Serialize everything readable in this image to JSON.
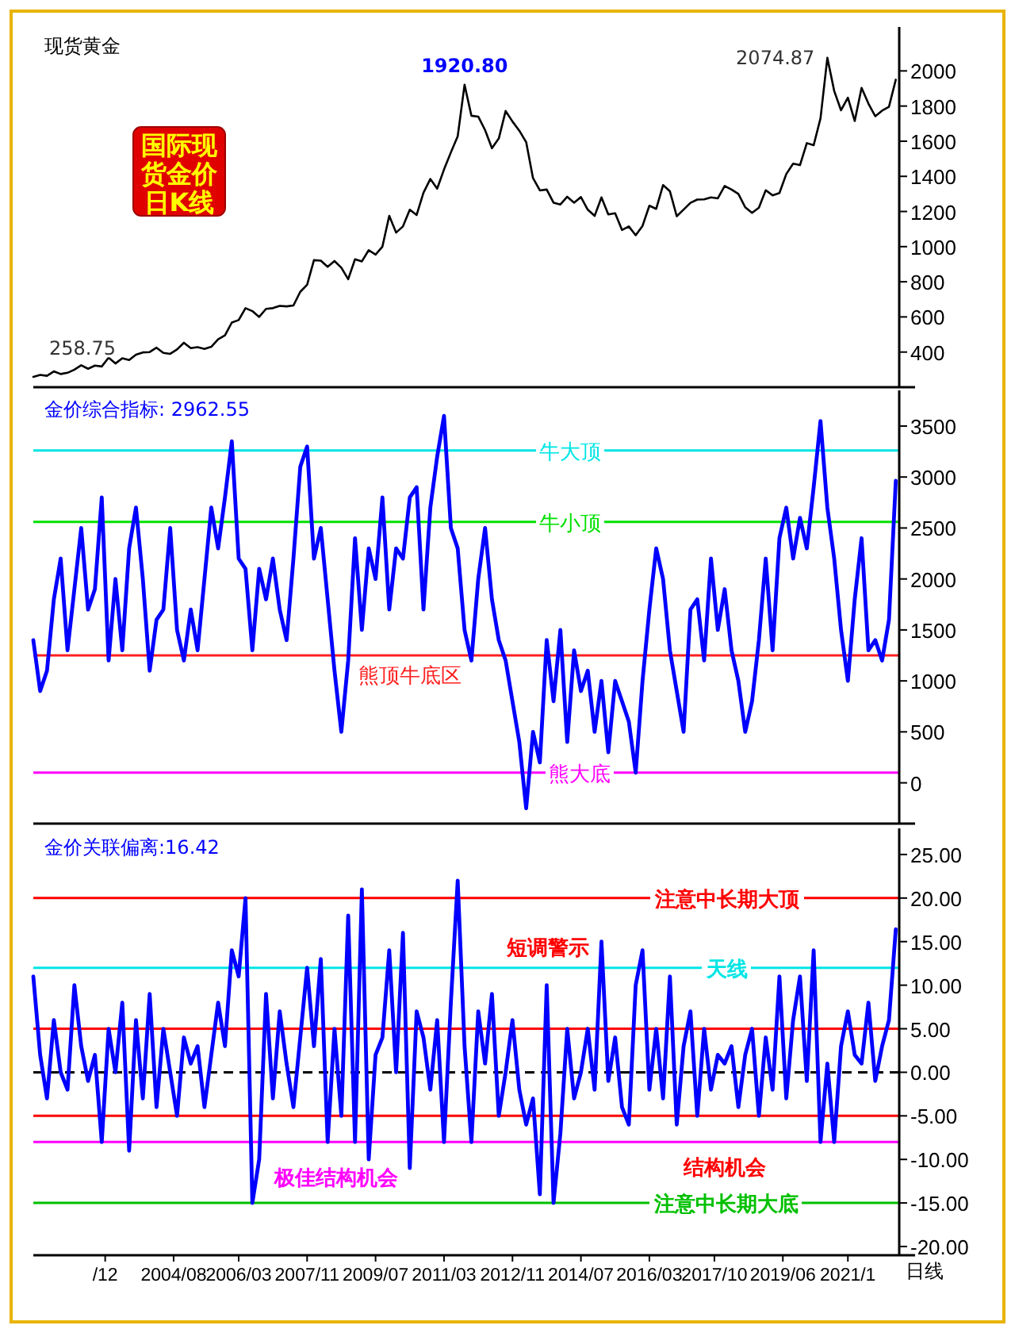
{
  "chart_data": [
    {
      "type": "line",
      "title": "现货黄金",
      "x": [
        "2001-03",
        "2001-05",
        "2001-07",
        "2001-09",
        "2001-11",
        "2002-01",
        "2002-03",
        "2002-05",
        "2002-07",
        "2002-09",
        "2002-11",
        "2003-01",
        "2003-03",
        "2003-05",
        "2003-07",
        "2003-09",
        "2003-11",
        "2004-01",
        "2004-03",
        "2004-05",
        "2004-07",
        "2004-09",
        "2004-11",
        "2005-01",
        "2005-03",
        "2005-05",
        "2005-07",
        "2005-09",
        "2005-11",
        "2006-01",
        "2006-03",
        "2006-05",
        "2006-07",
        "2006-09",
        "2006-11",
        "2007-01",
        "2007-03",
        "2007-05",
        "2007-07",
        "2007-09",
        "2007-11",
        "2008-01",
        "2008-03",
        "2008-05",
        "2008-07",
        "2008-09",
        "2008-11",
        "2009-01",
        "2009-03",
        "2009-05",
        "2009-07",
        "2009-09",
        "2009-11",
        "2010-01",
        "2010-03",
        "2010-05",
        "2010-07",
        "2010-09",
        "2010-11",
        "2011-01",
        "2011-03",
        "2011-05",
        "2011-07",
        "2011-09",
        "2011-11",
        "2012-01",
        "2012-03",
        "2012-05",
        "2012-07",
        "2012-09",
        "2012-11",
        "2013-01",
        "2013-03",
        "2013-05",
        "2013-07",
        "2013-09",
        "2013-11",
        "2014-01",
        "2014-03",
        "2014-05",
        "2014-07",
        "2014-09",
        "2014-11",
        "2015-01",
        "2015-03",
        "2015-05",
        "2015-07",
        "2015-09",
        "2015-11",
        "2016-01",
        "2016-03",
        "2016-05",
        "2016-07",
        "2016-09",
        "2016-11",
        "2017-01",
        "2017-03",
        "2017-05",
        "2017-07",
        "2017-09",
        "2017-11",
        "2018-01",
        "2018-03",
        "2018-05",
        "2018-07",
        "2018-09",
        "2018-11",
        "2019-01",
        "2019-03",
        "2019-05",
        "2019-07",
        "2019-09",
        "2019-11",
        "2020-01",
        "2020-03",
        "2020-05",
        "2020-07",
        "2020-09",
        "2020-11",
        "2021-01",
        "2021-03",
        "2021-05",
        "2021-07",
        "2021-09",
        "2021-11",
        "2022-01",
        "2022-03"
      ],
      "series": [
        {
          "color": "#000000",
          "values": [
            258.75,
            270,
            265,
            290,
            275,
            282,
            300,
            325,
            305,
            323,
            318,
            368,
            335,
            365,
            355,
            385,
            398,
            400,
            425,
            395,
            390,
            415,
            453,
            422,
            428,
            418,
            430,
            473,
            495,
            568,
            582,
            650,
            633,
            600,
            646,
            650,
            663,
            660,
            665,
            743,
            783,
            923,
            920,
            885,
            918,
            880,
            815,
            928,
            916,
            980,
            955,
            1000,
            1175,
            1080,
            1115,
            1210,
            1180,
            1307,
            1385,
            1330,
            1439,
            1536,
            1628,
            1920.8,
            1745,
            1740,
            1663,
            1560,
            1615,
            1772,
            1712,
            1660,
            1595,
            1390,
            1320,
            1325,
            1250,
            1240,
            1284,
            1250,
            1282,
            1210,
            1175,
            1280,
            1183,
            1190,
            1095,
            1115,
            1065,
            1118,
            1233,
            1215,
            1350,
            1315,
            1173,
            1211,
            1249,
            1268,
            1269,
            1280,
            1275,
            1345,
            1325,
            1300,
            1224,
            1192,
            1222,
            1321,
            1292,
            1305,
            1413,
            1472,
            1464,
            1589,
            1577,
            1730,
            2074.87,
            1886,
            1776,
            1848,
            1715,
            1903,
            1814,
            1742,
            1774,
            1796,
            1950
          ]
        }
      ],
      "xlim": [
        "2001-03",
        "2022-04"
      ],
      "ylim": [
        200,
        2250
      ],
      "yticks": [
        400,
        600,
        800,
        1000,
        1200,
        1400,
        1600,
        1800,
        2000
      ],
      "tick_labels": "y",
      "grid": false,
      "annotations": [
        {
          "text": "1920.80",
          "x": "2011-09",
          "y": 1920.8
        },
        {
          "text": "2074.87",
          "x": "2020-07",
          "y": 2074.87
        },
        {
          "text": "258.75",
          "x": "2001-03",
          "y": 258.75
        },
        "国际现货金价日K线"
      ]
    },
    {
      "type": "line",
      "title": "金价综合指标: 2962.55",
      "x": [
        "2001-03",
        "2001-05",
        "2001-07",
        "2001-09",
        "2001-11",
        "2002-01",
        "2002-03",
        "2002-05",
        "2002-07",
        "2002-09",
        "2002-11",
        "2003-01",
        "2003-03",
        "2003-05",
        "2003-07",
        "2003-09",
        "2003-11",
        "2004-01",
        "2004-03",
        "2004-05",
        "2004-07",
        "2004-09",
        "2004-11",
        "2005-01",
        "2005-03",
        "2005-05",
        "2005-07",
        "2005-09",
        "2005-11",
        "2006-01",
        "2006-03",
        "2006-05",
        "2006-07",
        "2006-09",
        "2006-11",
        "2007-01",
        "2007-03",
        "2007-05",
        "2007-07",
        "2007-09",
        "2007-11",
        "2008-01",
        "2008-03",
        "2008-05",
        "2008-07",
        "2008-09",
        "2008-11",
        "2009-01",
        "2009-03",
        "2009-05",
        "2009-07",
        "2009-09",
        "2009-11",
        "2010-01",
        "2010-03",
        "2010-05",
        "2010-07",
        "2010-09",
        "2010-11",
        "2011-01",
        "2011-03",
        "2011-05",
        "2011-07",
        "2011-09",
        "2011-11",
        "2012-01",
        "2012-03",
        "2012-05",
        "2012-07",
        "2012-09",
        "2012-11",
        "2013-01",
        "2013-03",
        "2013-05",
        "2013-07",
        "2013-09",
        "2013-11",
        "2014-01",
        "2014-03",
        "2014-05",
        "2014-07",
        "2014-09",
        "2014-11",
        "2015-01",
        "2015-03",
        "2015-05",
        "2015-07",
        "2015-09",
        "2015-11",
        "2016-01",
        "2016-03",
        "2016-05",
        "2016-07",
        "2016-09",
        "2016-11",
        "2017-01",
        "2017-03",
        "2017-05",
        "2017-07",
        "2017-09",
        "2017-11",
        "2018-01",
        "2018-03",
        "2018-05",
        "2018-07",
        "2018-09",
        "2018-11",
        "2019-01",
        "2019-03",
        "2019-05",
        "2019-07",
        "2019-09",
        "2019-11",
        "2020-01",
        "2020-03",
        "2020-05",
        "2020-07",
        "2020-09",
        "2020-11",
        "2021-01",
        "2021-03",
        "2021-05",
        "2021-07",
        "2021-09",
        "2021-11",
        "2022-01",
        "2022-03"
      ],
      "series": [
        {
          "color": "#0000ff",
          "values": [
            1400,
            900,
            1100,
            1800,
            2200,
            1300,
            1900,
            2500,
            1700,
            1900,
            2800,
            1200,
            2000,
            1300,
            2300,
            2700,
            2000,
            1100,
            1600,
            1700,
            2500,
            1500,
            1200,
            1700,
            1300,
            2000,
            2700,
            2300,
            2800,
            3350,
            2200,
            2100,
            1300,
            2100,
            1800,
            2200,
            1700,
            1400,
            2200,
            3100,
            3300,
            2200,
            2500,
            1800,
            1100,
            500,
            1200,
            2400,
            1500,
            2300,
            2000,
            2800,
            1700,
            2300,
            2200,
            2800,
            2900,
            1700,
            2700,
            3200,
            3600,
            2500,
            2300,
            1500,
            1200,
            2000,
            2500,
            1800,
            1400,
            1200,
            800,
            400,
            -250,
            500,
            200,
            1400,
            800,
            1500,
            400,
            1300,
            900,
            1100,
            500,
            1000,
            300,
            1000,
            800,
            600,
            100,
            1000,
            1700,
            2300,
            2000,
            1300,
            900,
            500,
            1700,
            1800,
            1200,
            2200,
            1500,
            1900,
            1300,
            1000,
            500,
            800,
            1400,
            2200,
            1300,
            2400,
            2700,
            2200,
            2600,
            2300,
            2900,
            3550,
            2700,
            2200,
            1500,
            1000,
            1800,
            2400,
            1300,
            1400,
            1200,
            1600,
            2962.55
          ]
        }
      ],
      "xlim": [
        "2001-03",
        "2022-04"
      ],
      "ylim": [
        -400,
        3850
      ],
      "yticks": [
        0,
        500,
        1000,
        1500,
        2000,
        2500,
        3000,
        3500
      ],
      "tick_labels": "y",
      "grid": false,
      "ref_lines": [
        {
          "axis": "y",
          "value": 3260,
          "label": "牛大顶",
          "color": "#00e5e5"
        },
        {
          "axis": "y",
          "value": 2560,
          "label": "牛小顶",
          "color": "#00e000"
        },
        {
          "axis": "y",
          "value": 1250,
          "label": "熊顶牛底区",
          "color": "#ff2020"
        },
        {
          "axis": "y",
          "value": 100,
          "label": "熊大底",
          "color": "#ff00ff"
        }
      ]
    },
    {
      "type": "line",
      "title": "金价关联偏离:16.42",
      "x": [
        "2001-03",
        "2001-05",
        "2001-07",
        "2001-09",
        "2001-11",
        "2002-01",
        "2002-03",
        "2002-05",
        "2002-07",
        "2002-09",
        "2002-11",
        "2003-01",
        "2003-03",
        "2003-05",
        "2003-07",
        "2003-09",
        "2003-11",
        "2004-01",
        "2004-03",
        "2004-05",
        "2004-07",
        "2004-09",
        "2004-11",
        "2005-01",
        "2005-03",
        "2005-05",
        "2005-07",
        "2005-09",
        "2005-11",
        "2006-01",
        "2006-03",
        "2006-05",
        "2006-07",
        "2006-09",
        "2006-11",
        "2007-01",
        "2007-03",
        "2007-05",
        "2007-07",
        "2007-09",
        "2007-11",
        "2008-01",
        "2008-03",
        "2008-05",
        "2008-07",
        "2008-09",
        "2008-11",
        "2009-01",
        "2009-03",
        "2009-05",
        "2009-07",
        "2009-09",
        "2009-11",
        "2010-01",
        "2010-03",
        "2010-05",
        "2010-07",
        "2010-09",
        "2010-11",
        "2011-01",
        "2011-03",
        "2011-05",
        "2011-07",
        "2011-09",
        "2011-11",
        "2012-01",
        "2012-03",
        "2012-05",
        "2012-07",
        "2012-09",
        "2012-11",
        "2013-01",
        "2013-03",
        "2013-05",
        "2013-07",
        "2013-09",
        "2013-11",
        "2014-01",
        "2014-03",
        "2014-05",
        "2014-07",
        "2014-09",
        "2014-11",
        "2015-01",
        "2015-03",
        "2015-05",
        "2015-07",
        "2015-09",
        "2015-11",
        "2016-01",
        "2016-03",
        "2016-05",
        "2016-07",
        "2016-09",
        "2016-11",
        "2017-01",
        "2017-03",
        "2017-05",
        "2017-07",
        "2017-09",
        "2017-11",
        "2018-01",
        "2018-03",
        "2018-05",
        "2018-07",
        "2018-09",
        "2018-11",
        "2019-01",
        "2019-03",
        "2019-05",
        "2019-07",
        "2019-09",
        "2019-11",
        "2020-01",
        "2020-03",
        "2020-05",
        "2020-07",
        "2020-09",
        "2020-11",
        "2021-01",
        "2021-03",
        "2021-05",
        "2021-07",
        "2021-09",
        "2021-11",
        "2022-01",
        "2022-03"
      ],
      "series": [
        {
          "color": "#0000ff",
          "values": [
            11,
            2,
            -3,
            6,
            0,
            -2,
            10,
            3,
            -1,
            2,
            -8,
            5,
            0,
            8,
            -9,
            6,
            -3,
            9,
            -4,
            5,
            0,
            -5,
            4,
            1,
            3,
            -4,
            2,
            8,
            3,
            14,
            11,
            20,
            -15,
            -10,
            9,
            -3,
            7,
            1,
            -4,
            4,
            12,
            3,
            13,
            -8,
            5,
            -5,
            18,
            -8,
            21,
            -10,
            2,
            4,
            14,
            0,
            16,
            -11,
            7,
            4,
            -2,
            6,
            -8,
            8,
            22,
            3,
            -8,
            7,
            1,
            9,
            -5,
            0,
            6,
            -2,
            -6,
            -3,
            -14,
            10,
            -15,
            -7,
            5,
            -3,
            0,
            5,
            -2,
            15,
            -1,
            4,
            -4,
            -6,
            10,
            14,
            -2,
            5,
            -3,
            11,
            -6,
            3,
            7,
            -5,
            5,
            -2,
            2,
            1,
            3,
            -4,
            2,
            5,
            -5,
            4,
            -2,
            11,
            -3,
            6,
            11,
            -1,
            14,
            -8,
            1,
            -8,
            3,
            7,
            2,
            1,
            8,
            -1,
            3,
            6,
            16.42
          ]
        }
      ],
      "xlim": [
        "2001-03",
        "2022-04"
      ],
      "xticks": [
        {
          "value": "2002-12",
          "label": "/12"
        },
        {
          "value": "2004-08",
          "label": "2004/08"
        },
        {
          "value": "2006-03",
          "label": "2006/03"
        },
        {
          "value": "2007-11",
          "label": "2007/11"
        },
        {
          "value": "2009-07",
          "label": "2009/07"
        },
        {
          "value": "2011-03",
          "label": "2011/03"
        },
        {
          "value": "2012-11",
          "label": "2012/11"
        },
        {
          "value": "2014-07",
          "label": "2014/07"
        },
        {
          "value": "2016-03",
          "label": "2016/03"
        },
        {
          "value": "2017-10",
          "label": "2017/10"
        },
        {
          "value": "2019-06",
          "label": "2019/06"
        },
        {
          "value": "2021-01",
          "label": "2021/1"
        }
      ],
      "ylim": [
        -21,
        28
      ],
      "yticks": [
        {
          "value": -20,
          "label": "-20.00"
        },
        {
          "value": -15,
          "label": "-15.00"
        },
        {
          "value": -10,
          "label": "-10.00"
        },
        {
          "value": -5,
          "label": "-5.00"
        },
        {
          "value": 0,
          "label": "0.00"
        },
        {
          "value": 5,
          "label": "5.00"
        },
        {
          "value": 10,
          "label": "10.00"
        },
        {
          "value": 15,
          "label": "15.00"
        },
        {
          "value": 20,
          "label": "20.00"
        },
        {
          "value": 25,
          "label": "25.00"
        }
      ],
      "grid": false,
      "ref_lines": [
        {
          "axis": "y",
          "value": 20,
          "label": "注意中长期大顶",
          "color": "#ff0000"
        },
        {
          "axis": "y",
          "value": 12,
          "label": "天线",
          "color": "#00e5e5"
        },
        {
          "axis": "y",
          "value": 5,
          "label": "短调警示",
          "color": "#ff0000"
        },
        {
          "axis": "y",
          "value": 0,
          "color": "#000000",
          "line_style": "dashed"
        },
        {
          "axis": "y",
          "value": -5,
          "label": "结构机会",
          "color": "#ff0000"
        },
        {
          "axis": "y",
          "value": -8,
          "label": "极佳结构机会",
          "color": "#ff00ff"
        },
        {
          "axis": "y",
          "value": -15,
          "label": "注意中长期大底",
          "color": "#00c000"
        }
      ],
      "annotations": [
        "日线"
      ]
    }
  ]
}
